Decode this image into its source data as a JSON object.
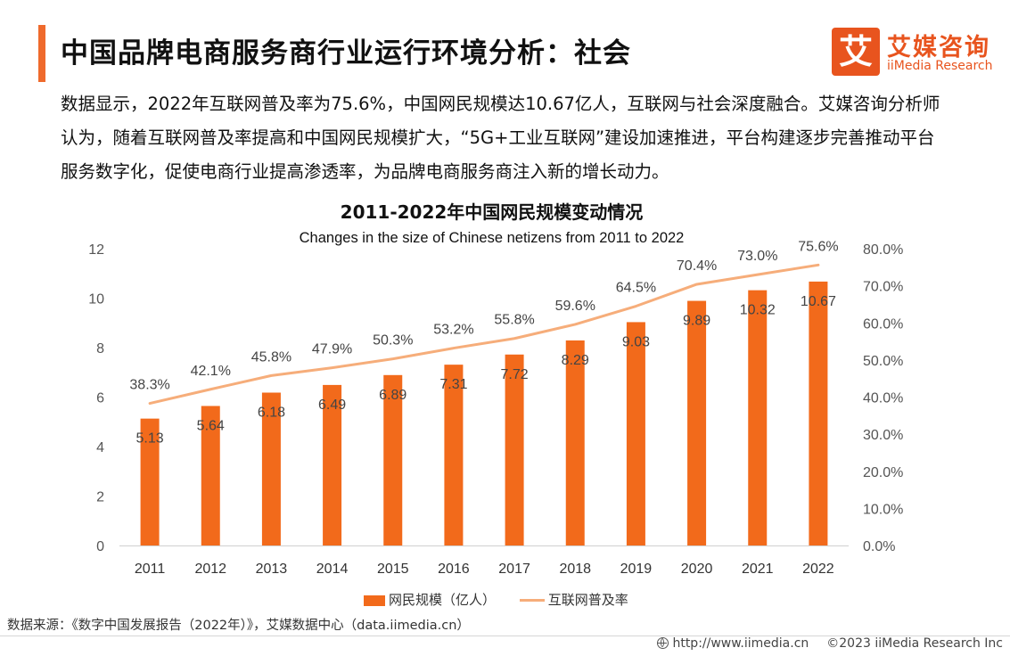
{
  "header": {
    "title": "中国品牌电商服务商行业运行环境分析：社会",
    "logo_glyph": "艾",
    "logo_cn": "艾媒咨询",
    "logo_en": "iiMedia Research"
  },
  "intro_text": "数据显示，2022年互联网普及率为75.6%，中国网民规模达10.67亿人，互联网与社会深度融合。艾媒咨询分析师认为，随着互联网普及率提高和中国网民规模扩大，“5G+工业互联网”建设加速推进，平台构建逐步完善推动平台服务数字化，促使电商行业提高渗透率，为品牌电商服务商注入新的增长动力。",
  "chart_data": {
    "type": "bar",
    "title": "2011-2022年中国网民规模变动情况",
    "subtitle": "Changes in the size of Chinese netizens from 2011 to 2022",
    "categories": [
      "2011",
      "2012",
      "2013",
      "2014",
      "2015",
      "2016",
      "2017",
      "2018",
      "2019",
      "2020",
      "2021",
      "2022"
    ],
    "series": [
      {
        "name": "网民规模（亿人）",
        "type": "bar",
        "axis": "left",
        "values": [
          5.13,
          5.64,
          6.18,
          6.49,
          6.89,
          7.31,
          7.72,
          8.29,
          9.03,
          9.89,
          10.32,
          10.67
        ],
        "labels": [
          "5.13",
          "5.64",
          "6.18",
          "6.49",
          "6.89",
          "7.31",
          "7.72",
          "8.29",
          "9.03",
          "9.89",
          "10.32",
          "10.67"
        ]
      },
      {
        "name": "互联网普及率",
        "type": "line",
        "axis": "right",
        "values": [
          38.3,
          42.1,
          45.8,
          47.9,
          50.3,
          53.2,
          55.8,
          59.6,
          64.5,
          70.4,
          73.0,
          75.6
        ],
        "labels": [
          "38.3%",
          "42.1%",
          "45.8%",
          "47.9%",
          "50.3%",
          "53.2%",
          "55.8%",
          "59.6%",
          "64.5%",
          "70.4%",
          "73.0%",
          "75.6%"
        ]
      }
    ],
    "y_left": {
      "min": 0,
      "max": 12,
      "ticks": [
        "0",
        "2",
        "4",
        "6",
        "8",
        "10",
        "12"
      ]
    },
    "y_right": {
      "min": 0,
      "max": 80,
      "ticks": [
        "0.0%",
        "10.0%",
        "20.0%",
        "30.0%",
        "40.0%",
        "50.0%",
        "60.0%",
        "70.0%",
        "80.0%"
      ]
    },
    "grid": false,
    "legend_position": "bottom",
    "colors": {
      "bar": "#f26a1b",
      "line": "#f6ad7a",
      "axis_text": "#555555"
    }
  },
  "source": "数据来源：《数字中国发展报告（2022年）》，艾媒数据中心（data.iimedia.cn）",
  "footer": {
    "url": "http://www.iimedia.cn",
    "copyright": "©2023  iiMedia Research  Inc"
  }
}
